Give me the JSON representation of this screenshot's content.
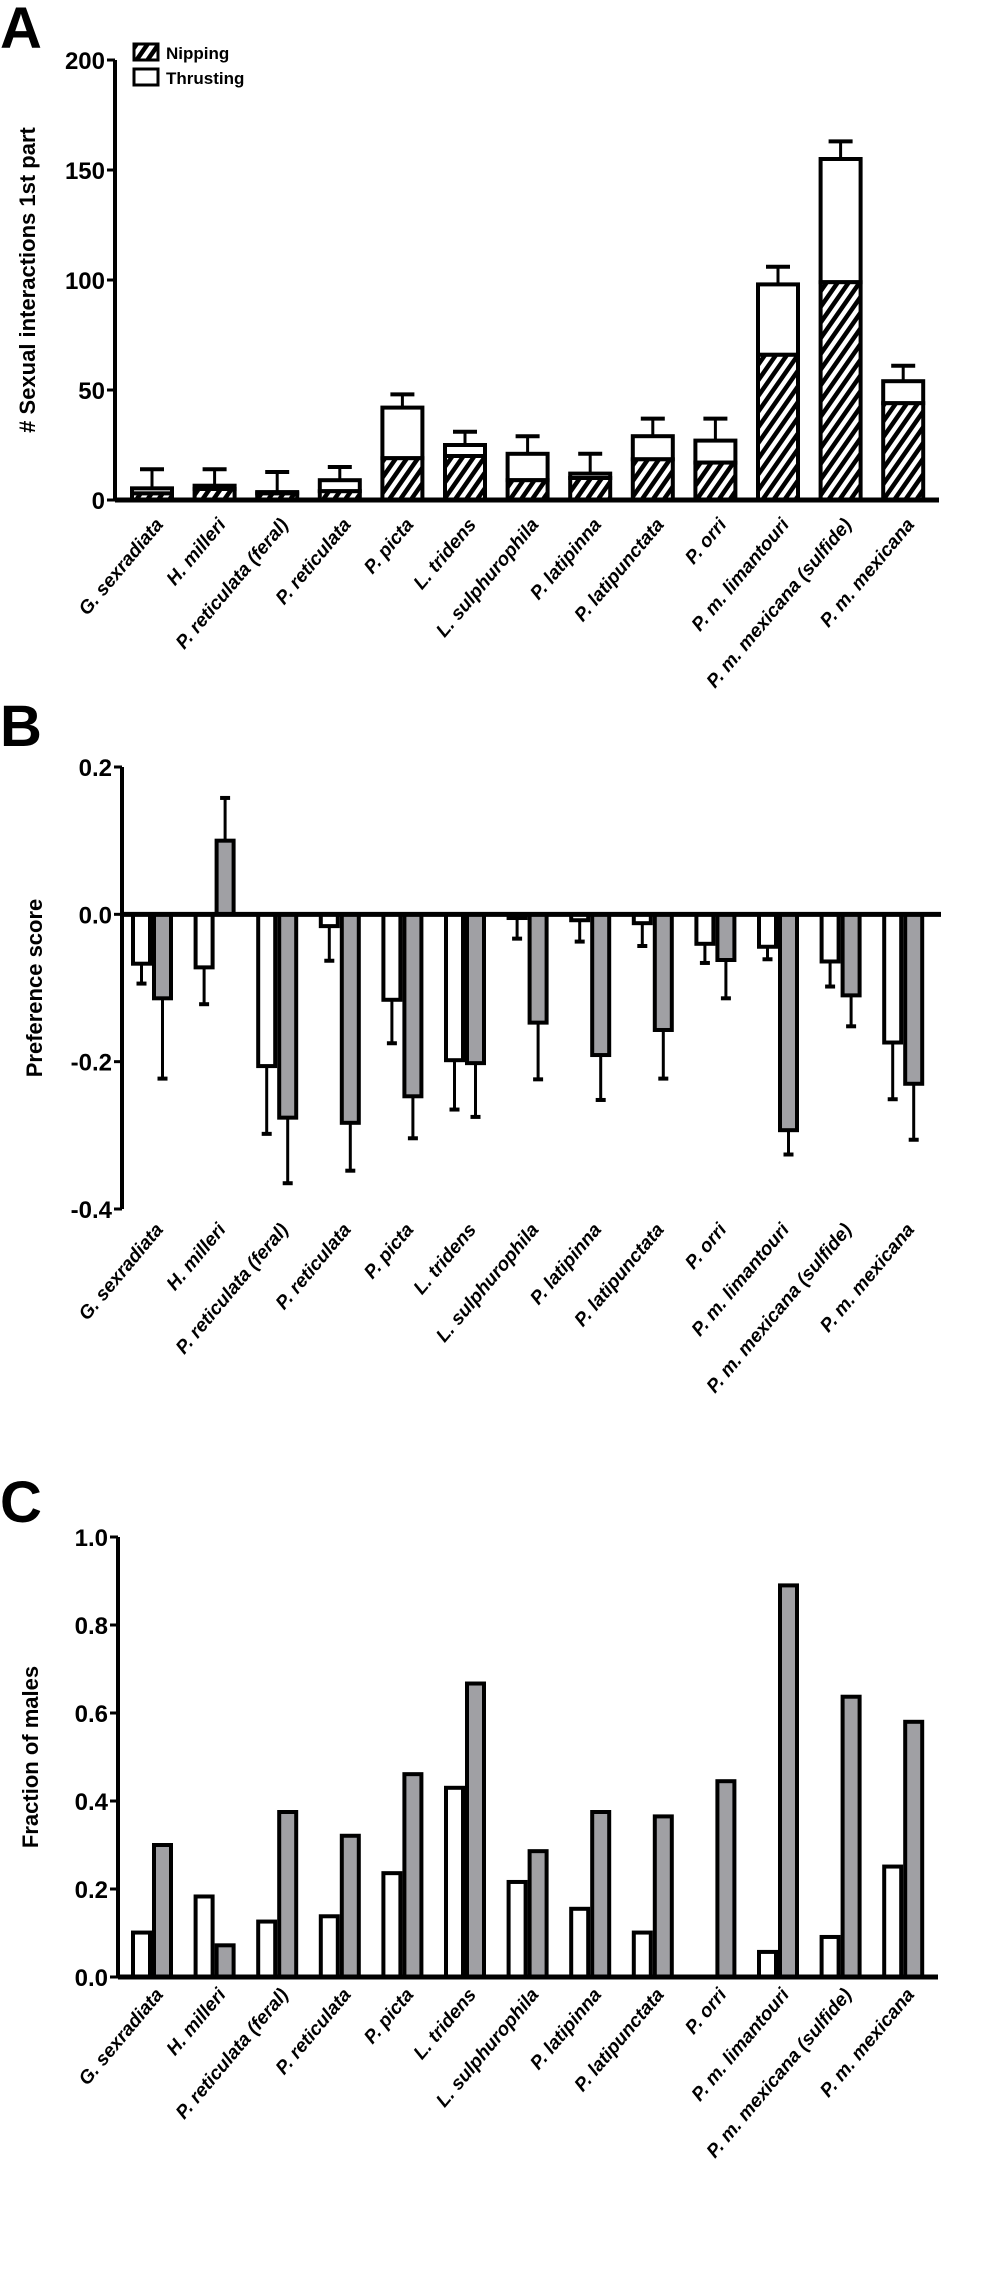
{
  "chart_data": [
    {
      "panel": "A",
      "type": "bar",
      "stacked": true,
      "categories": [
        "G. sexradiata",
        "H. milleri",
        "P. reticulata (feral)",
        "P. reticulata",
        "P. picta",
        "L. tridens",
        "L. sulphurophila",
        "P. latipinna",
        "P. latipunctata",
        "P. orri",
        "P. m. limantouri",
        "P. m. mexicana (sulfide)",
        "P. m. mexicana"
      ],
      "ylabel": "# Sexual interactions 1st part",
      "ylim": [
        0,
        200
      ],
      "yticks": [
        0,
        50,
        100,
        150,
        200
      ],
      "legend_position": "top-left",
      "series": [
        {
          "name": "Nipping",
          "fill": "hatched",
          "values": [
            3,
            5,
            3,
            4,
            19,
            20,
            9,
            10,
            18.5,
            17,
            66,
            99,
            44
          ]
        },
        {
          "name": "Thrusting",
          "fill": "#ffffff",
          "values": [
            2.3,
            1.5,
            0.6,
            5,
            23,
            5,
            12,
            2,
            10.5,
            10,
            32,
            56,
            10
          ]
        }
      ],
      "totals": [
        5.3,
        6.5,
        3.6,
        9,
        42,
        25,
        21,
        12,
        29,
        27,
        98,
        155,
        54
      ],
      "error_upper": [
        14,
        14,
        12.7,
        15,
        48,
        31,
        29,
        21,
        37,
        37,
        106,
        163,
        61
      ]
    },
    {
      "panel": "B",
      "type": "bar",
      "categories": [
        "G. sexradiata",
        "H. milleri",
        "P. reticulata (feral)",
        "P. reticulata",
        "P. picta",
        "L. tridens",
        "L. sulphurophila",
        "P. latipinna",
        "P. latipunctata",
        "P. orri",
        "P. m. limantouri",
        "P. m. mexicana (sulfide)",
        "P. m. mexicana"
      ],
      "ylabel": "Preference score",
      "ylim": [
        -0.4,
        0.2
      ],
      "yticks": [
        "-0.4",
        "-0.2",
        "0.0",
        "0.2"
      ],
      "series": [
        {
          "fill": "#ffffff",
          "values": [
            -0.067,
            -0.072,
            -0.206,
            -0.016,
            -0.116,
            -0.198,
            -0.005,
            -0.008,
            -0.012,
            -0.04,
            -0.044,
            -0.064,
            -0.174
          ],
          "error_end": [
            -0.094,
            -0.122,
            -0.298,
            -0.063,
            -0.175,
            -0.265,
            -0.033,
            -0.037,
            -0.043,
            -0.066,
            -0.061,
            -0.098,
            -0.251
          ]
        },
        {
          "fill": "#a0a0a4",
          "values": [
            -0.114,
            0.1,
            -0.276,
            -0.283,
            -0.247,
            -0.202,
            -0.147,
            -0.191,
            -0.157,
            -0.062,
            -0.293,
            -0.11,
            -0.23
          ],
          "error_end": [
            -0.223,
            0.158,
            -0.365,
            -0.348,
            -0.304,
            -0.275,
            -0.224,
            -0.252,
            -0.223,
            -0.114,
            -0.326,
            -0.152,
            -0.306
          ]
        }
      ]
    },
    {
      "panel": "C",
      "type": "bar",
      "categories": [
        "G. sexradiata",
        "H. milleri",
        "P. reticulata (feral)",
        "P. reticulata",
        "P. picta",
        "L. tridens",
        "L. sulphurophila",
        "P. latipinna",
        "P. latipunctata",
        "P. orri",
        "P. m. limantouri",
        "P. m. mexicana (sulfide)",
        "P. m. mexicana"
      ],
      "ylabel": "Fraction of males",
      "ylim": [
        0,
        1.0
      ],
      "yticks": [
        "0.0",
        "0.2",
        "0.4",
        "0.6",
        "0.8",
        "1.0"
      ],
      "series": [
        {
          "fill": "#ffffff",
          "values": [
            0.101,
            0.183,
            0.126,
            0.138,
            0.236,
            0.43,
            0.216,
            0.155,
            0.101,
            0,
            0.057,
            0.091,
            0.251
          ]
        },
        {
          "fill": "#a0a0a4",
          "values": [
            0.3,
            0.072,
            0.375,
            0.321,
            0.461,
            0.667,
            0.286,
            0.375,
            0.365,
            0.445,
            0.89,
            0.637,
            0.58
          ]
        }
      ]
    }
  ]
}
